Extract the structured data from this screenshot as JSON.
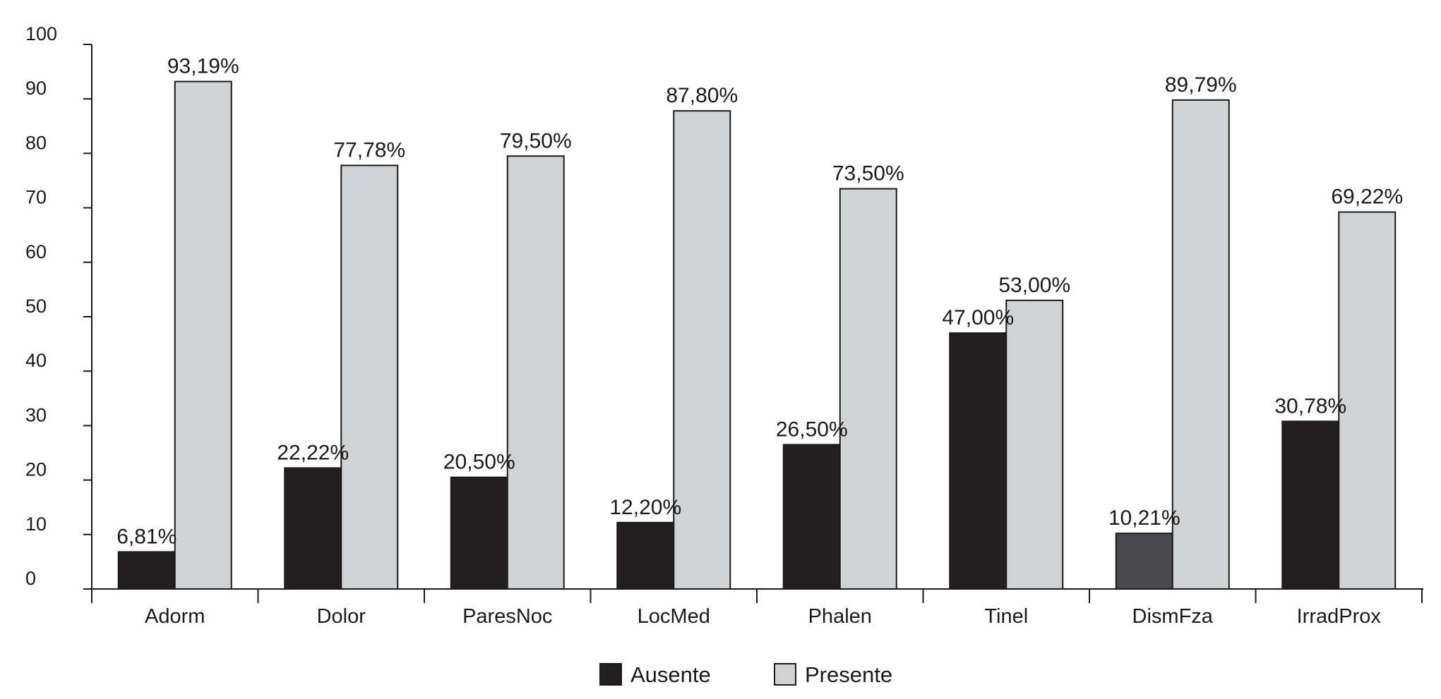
{
  "chart_data": {
    "type": "bar",
    "title": "",
    "xlabel": "",
    "ylabel": "",
    "ylim": [
      0,
      100
    ],
    "yticks": [
      0,
      10,
      20,
      30,
      40,
      50,
      60,
      70,
      80,
      90,
      100
    ],
    "grid": false,
    "legend_position": "bottom-center",
    "categories": [
      "Adorm",
      "Dolor",
      "ParesNoc",
      "LocMed",
      "Phalen",
      "Tinel",
      "DismFza",
      "IrradProx"
    ],
    "series": [
      {
        "name": "Ausente",
        "color": "#231f20",
        "values": [
          6.81,
          22.22,
          20.5,
          12.2,
          26.5,
          47.0,
          10.21,
          30.78
        ],
        "labels": [
          "6,81%",
          "22,22%",
          "20,50%",
          "12,20%",
          "26,50%",
          "47,00%",
          "10,21%",
          "30,78%"
        ]
      },
      {
        "name": "Presente",
        "color": "#d1d2d4",
        "values": [
          93.19,
          77.78,
          79.5,
          87.8,
          73.5,
          53.0,
          89.79,
          69.22
        ],
        "labels": [
          "93,19%",
          "77,78%",
          "79,50%",
          "87,80%",
          "73,50%",
          "53,00%",
          "89,79%",
          "69,22%"
        ]
      }
    ],
    "bar_colors_override": {
      "DismFza": {
        "Ausente": "#4a4a4c"
      }
    }
  }
}
